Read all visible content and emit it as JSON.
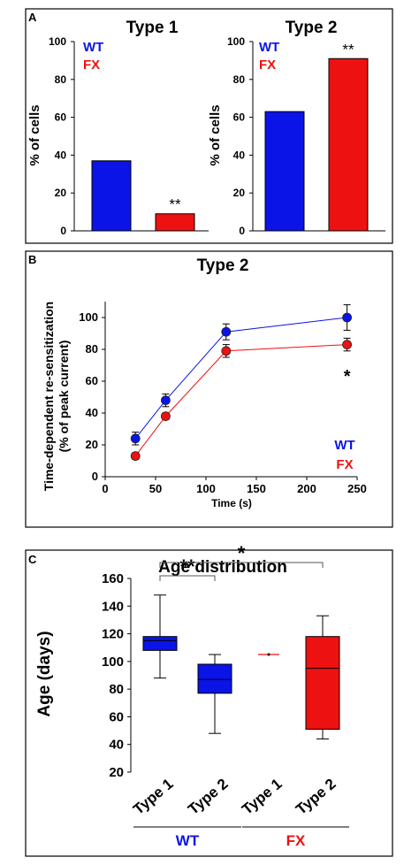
{
  "colors": {
    "wt": "#0a14e6",
    "fx": "#ee1111",
    "line": "#000000"
  },
  "panels": {
    "a": {
      "letter": "A"
    },
    "b": {
      "letter": "B"
    },
    "c": {
      "letter": "C"
    }
  },
  "chart_data": [
    {
      "type": "bar",
      "title": "Type 1",
      "ylabel": "% of cells",
      "ylim": [
        0,
        100
      ],
      "yticks": [
        0,
        20,
        40,
        60,
        80,
        100
      ],
      "legend": [
        "WT",
        "FX"
      ],
      "legend_placement": "top-left",
      "series": [
        {
          "name": "WT",
          "color": "#0a14e6",
          "value": 37
        },
        {
          "name": "FX",
          "color": "#ee1111",
          "value": 9,
          "annotation": "**"
        }
      ]
    },
    {
      "type": "bar",
      "title": "Type 2",
      "ylabel": "% of cells",
      "ylim": [
        0,
        100
      ],
      "yticks": [
        0,
        20,
        40,
        60,
        80,
        100
      ],
      "legend": [
        "WT",
        "FX"
      ],
      "legend_placement": "top-left",
      "series": [
        {
          "name": "WT",
          "color": "#0a14e6",
          "value": 63
        },
        {
          "name": "FX",
          "color": "#ee1111",
          "value": 91,
          "annotation": "**"
        }
      ]
    },
    {
      "type": "line",
      "title": "Type 2",
      "xlabel": "Time (s)",
      "ylabel": [
        "Time-dependent re-sensitization",
        "(% of peak current)"
      ],
      "xlim": [
        0,
        250
      ],
      "ylim": [
        0,
        110
      ],
      "xticks": [
        0,
        50,
        100,
        150,
        200,
        250
      ],
      "yticks": [
        0,
        20,
        40,
        60,
        80,
        100
      ],
      "legend_placement": "bottom-right",
      "annotation": {
        "text": "*",
        "x": 240,
        "y": 65
      },
      "series": [
        {
          "name": "WT",
          "color": "#0a14e6",
          "x": [
            30,
            60,
            120,
            240
          ],
          "y": [
            24,
            48,
            91,
            100
          ],
          "err": [
            4,
            4,
            5,
            8
          ]
        },
        {
          "name": "FX",
          "color": "#ee1111",
          "x": [
            30,
            60,
            120,
            240
          ],
          "y": [
            13,
            38,
            79,
            83
          ],
          "err": [
            2,
            2,
            4,
            4
          ]
        }
      ]
    },
    {
      "type": "box",
      "title": "Age distribution",
      "ylabel": "Age (days)",
      "ylim": [
        20,
        160
      ],
      "yticks": [
        20,
        40,
        60,
        80,
        100,
        120,
        140,
        160
      ],
      "categories": [
        "Type 1",
        "Type 2",
        "Type 1",
        "Type 2"
      ],
      "groups": [
        {
          "label": "WT",
          "color": "#0a14e6",
          "span": [
            0,
            1
          ]
        },
        {
          "label": "FX",
          "color": "#ee1111",
          "span": [
            2,
            3
          ]
        }
      ],
      "boxes": [
        {
          "color": "#0a14e6",
          "min": 88,
          "q1": 108,
          "median": 115,
          "q3": 118,
          "max": 148
        },
        {
          "color": "#0a14e6",
          "min": 48,
          "q1": 77,
          "median": 87,
          "q3": 98,
          "max": 105
        },
        {
          "color": "#ee1111",
          "min": 105,
          "q1": 105,
          "median": 105,
          "q3": 105,
          "max": 105
        },
        {
          "color": "#ee1111",
          "min": 44,
          "q1": 51,
          "median": 95,
          "q3": 118,
          "max": 133
        }
      ],
      "significance": [
        {
          "from": 0,
          "to": 1,
          "label": "**"
        },
        {
          "from": 0,
          "to": 3,
          "label": "*"
        }
      ]
    }
  ]
}
